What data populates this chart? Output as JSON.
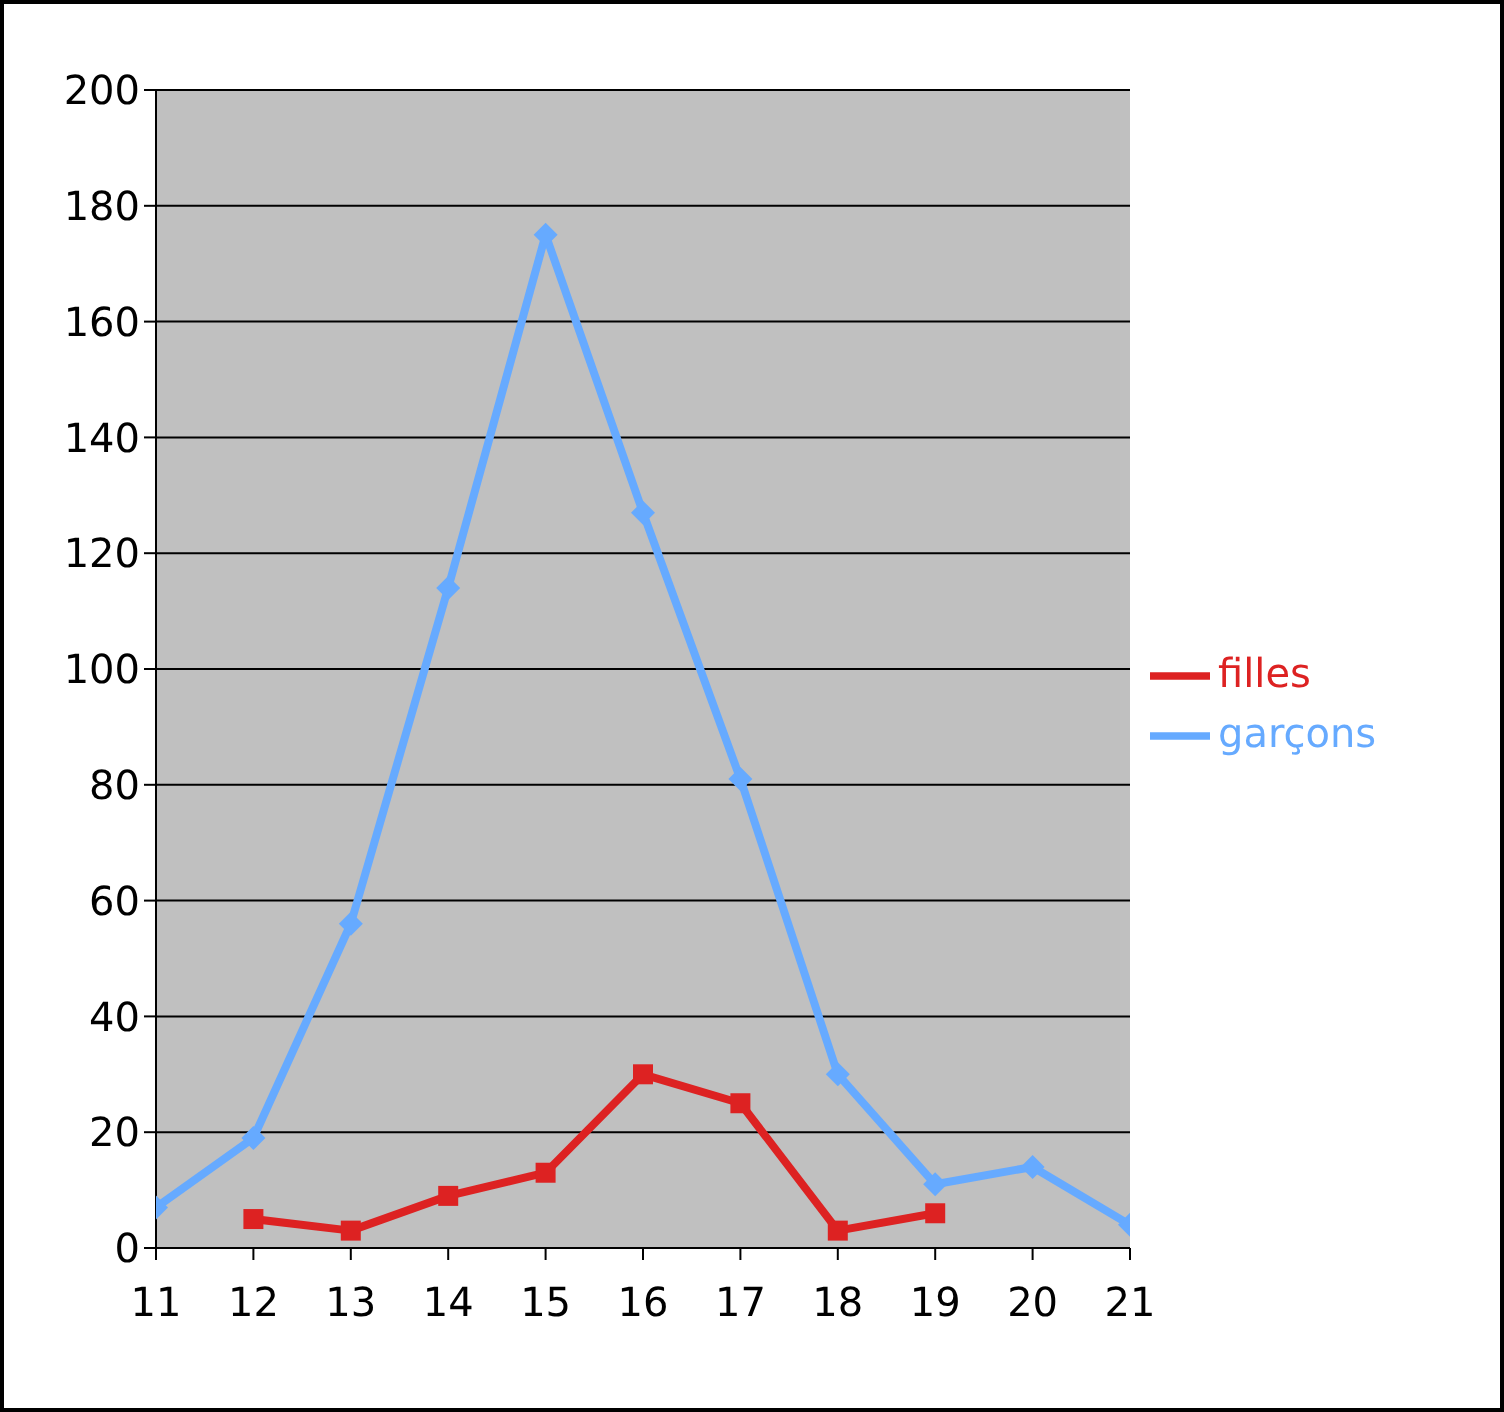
{
  "chart_data": {
    "type": "line",
    "categories": [
      "11",
      "12",
      "13",
      "14",
      "15",
      "16",
      "17",
      "18",
      "19",
      "20",
      "21"
    ],
    "series": [
      {
        "name": "garçons",
        "color": "#66aaff",
        "marker": "diamond",
        "values": [
          7,
          19,
          56,
          114,
          175,
          127,
          81,
          30,
          11,
          14,
          4
        ]
      },
      {
        "name": "filles",
        "color": "#dd2222",
        "marker": "square",
        "values": [
          null,
          5,
          3,
          9,
          13,
          30,
          25,
          3,
          6,
          null,
          null
        ]
      }
    ],
    "ylim": [
      0,
      200
    ],
    "yticks": [
      0,
      20,
      40,
      60,
      80,
      100,
      120,
      140,
      160,
      180,
      200
    ],
    "grid": "y",
    "legend": "right"
  }
}
